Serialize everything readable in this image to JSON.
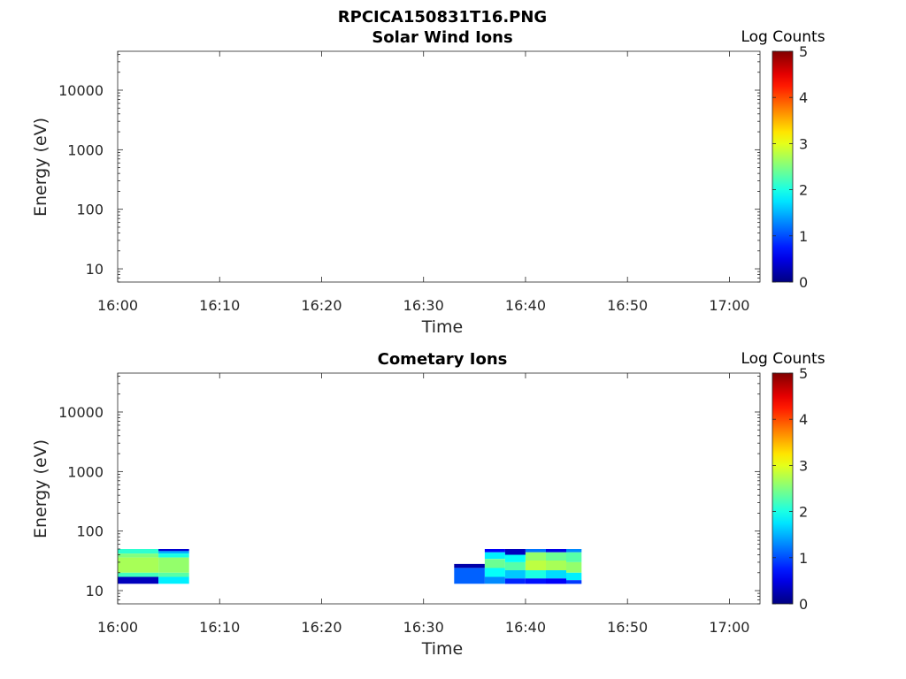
{
  "figure_title": "RPCICA150831T16.PNG",
  "chart_data": [
    {
      "type": "heatmap",
      "title": "Solar Wind Ions",
      "xlabel": "Time",
      "ylabel": "Energy (eV)",
      "x_range": [
        "16:00",
        "17:03"
      ],
      "x_ticks": [
        "16:00",
        "16:10",
        "16:20",
        "16:30",
        "16:40",
        "16:50",
        "17:00"
      ],
      "y_scale": "log",
      "y_range": [
        6,
        45000
      ],
      "y_ticks": [
        {
          "value": 10,
          "label": "10"
        },
        {
          "value": 100,
          "label": "100"
        },
        {
          "value": 1000,
          "label": "1000"
        },
        {
          "value": 10000,
          "label": "10000"
        }
      ],
      "colorbar": {
        "label": "Log Counts",
        "min": 0,
        "max": 5,
        "ticks": [
          "0",
          "1",
          "2",
          "3",
          "4",
          "5"
        ],
        "colormap": "jet"
      },
      "cells": []
    },
    {
      "type": "heatmap",
      "title": "Cometary Ions",
      "xlabel": "Time",
      "ylabel": "Energy (eV)",
      "x_range": [
        "16:00",
        "17:03"
      ],
      "x_ticks": [
        "16:00",
        "16:10",
        "16:20",
        "16:30",
        "16:40",
        "16:50",
        "17:00"
      ],
      "y_scale": "log",
      "y_range": [
        6,
        45000
      ],
      "y_ticks": [
        {
          "value": 10,
          "label": "10"
        },
        {
          "value": 100,
          "label": "100"
        },
        {
          "value": 1000,
          "label": "1000"
        },
        {
          "value": 10000,
          "label": "10000"
        }
      ],
      "colorbar": {
        "label": "Log Counts",
        "min": 0,
        "max": 5,
        "ticks": [
          "0",
          "1",
          "2",
          "3",
          "4",
          "5"
        ],
        "colormap": "jet"
      },
      "cells": [
        {
          "t0": "16:00",
          "t1": "16:04",
          "e0": 42,
          "e1": 50,
          "v": 2.1
        },
        {
          "t0": "16:00",
          "t1": "16:04",
          "e0": 36,
          "e1": 42,
          "v": 2.5
        },
        {
          "t0": "16:00",
          "t1": "16:04",
          "e0": 20,
          "e1": 36,
          "v": 2.7
        },
        {
          "t0": "16:00",
          "t1": "16:04",
          "e0": 17,
          "e1": 20,
          "v": 2.2
        },
        {
          "t0": "16:00",
          "t1": "16:04",
          "e0": 13,
          "e1": 17,
          "v": 0.3
        },
        {
          "t0": "16:04",
          "t1": "16:07",
          "e0": 46,
          "e1": 50,
          "v": 0.4
        },
        {
          "t0": "16:04",
          "t1": "16:07",
          "e0": 42,
          "e1": 46,
          "v": 1.5
        },
        {
          "t0": "16:04",
          "t1": "16:07",
          "e0": 36,
          "e1": 42,
          "v": 2.0
        },
        {
          "t0": "16:04",
          "t1": "16:07",
          "e0": 20,
          "e1": 36,
          "v": 2.6
        },
        {
          "t0": "16:04",
          "t1": "16:07",
          "e0": 17,
          "e1": 20,
          "v": 2.3
        },
        {
          "t0": "16:04",
          "t1": "16:07",
          "e0": 13,
          "e1": 17,
          "v": 1.8
        },
        {
          "t0": "16:33",
          "t1": "16:36",
          "e0": 24,
          "e1": 28,
          "v": 0.2
        },
        {
          "t0": "16:33",
          "t1": "16:36",
          "e0": 13,
          "e1": 24,
          "v": 1.1
        },
        {
          "t0": "16:36",
          "t1": "16:38",
          "e0": 44,
          "e1": 50,
          "v": 0.6
        },
        {
          "t0": "16:36",
          "t1": "16:38",
          "e0": 34,
          "e1": 44,
          "v": 1.8
        },
        {
          "t0": "16:36",
          "t1": "16:38",
          "e0": 24,
          "e1": 34,
          "v": 2.4
        },
        {
          "t0": "16:36",
          "t1": "16:38",
          "e0": 17,
          "e1": 24,
          "v": 1.9
        },
        {
          "t0": "16:36",
          "t1": "16:38",
          "e0": 13,
          "e1": 17,
          "v": 1.3
        },
        {
          "t0": "16:38",
          "t1": "16:40",
          "e0": 40,
          "e1": 50,
          "v": 0.3
        },
        {
          "t0": "16:38",
          "t1": "16:40",
          "e0": 30,
          "e1": 40,
          "v": 1.9
        },
        {
          "t0": "16:38",
          "t1": "16:40",
          "e0": 22,
          "e1": 30,
          "v": 2.3
        },
        {
          "t0": "16:38",
          "t1": "16:40",
          "e0": 16,
          "e1": 22,
          "v": 1.6
        },
        {
          "t0": "16:38",
          "t1": "16:40",
          "e0": 13,
          "e1": 16,
          "v": 0.8
        },
        {
          "t0": "16:40",
          "t1": "16:42",
          "e0": 44,
          "e1": 50,
          "v": 1.2
        },
        {
          "t0": "16:40",
          "t1": "16:42",
          "e0": 32,
          "e1": 44,
          "v": 2.6
        },
        {
          "t0": "16:40",
          "t1": "16:42",
          "e0": 22,
          "e1": 32,
          "v": 2.8
        },
        {
          "t0": "16:40",
          "t1": "16:42",
          "e0": 16,
          "e1": 22,
          "v": 2.0
        },
        {
          "t0": "16:40",
          "t1": "16:42",
          "e0": 13,
          "e1": 16,
          "v": 0.7
        },
        {
          "t0": "16:42",
          "t1": "16:44",
          "e0": 44,
          "e1": 50,
          "v": 0.5
        },
        {
          "t0": "16:42",
          "t1": "16:44",
          "e0": 32,
          "e1": 44,
          "v": 2.4
        },
        {
          "t0": "16:42",
          "t1": "16:44",
          "e0": 22,
          "e1": 32,
          "v": 2.7
        },
        {
          "t0": "16:42",
          "t1": "16:44",
          "e0": 16,
          "e1": 22,
          "v": 1.7
        },
        {
          "t0": "16:42",
          "t1": "16:44",
          "e0": 13,
          "e1": 16,
          "v": 0.6
        },
        {
          "t0": "16:44",
          "t1": "16:45.5",
          "e0": 44,
          "e1": 50,
          "v": 1.3
        },
        {
          "t0": "16:44",
          "t1": "16:45.5",
          "e0": 30,
          "e1": 44,
          "v": 2.3
        },
        {
          "t0": "16:44",
          "t1": "16:45.5",
          "e0": 20,
          "e1": 30,
          "v": 2.6
        },
        {
          "t0": "16:44",
          "t1": "16:45.5",
          "e0": 15,
          "e1": 20,
          "v": 1.8
        },
        {
          "t0": "16:44",
          "t1": "16:45.5",
          "e0": 13,
          "e1": 15,
          "v": 0.9
        }
      ]
    }
  ]
}
